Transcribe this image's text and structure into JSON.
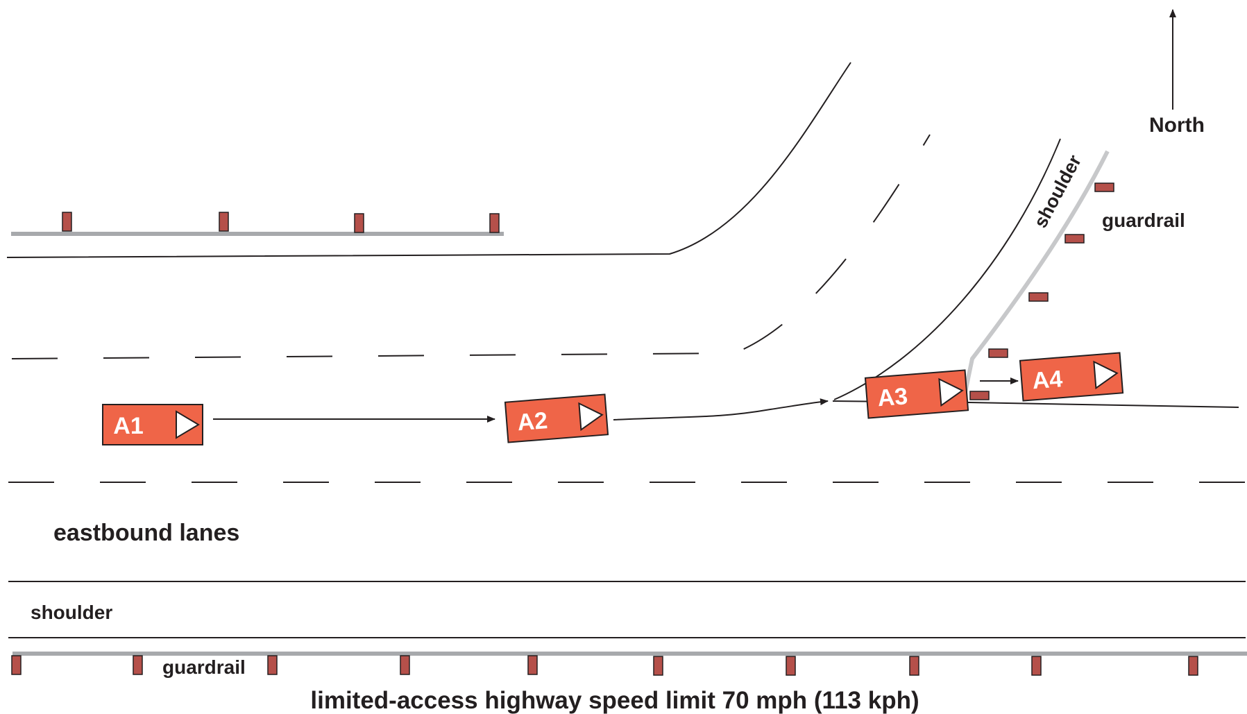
{
  "labels": {
    "north": "North",
    "shoulder_ramp": "shoulder",
    "guardrail_ramp": "guardrail",
    "eastbound_lanes": "eastbound lanes",
    "shoulder_main": "shoulder",
    "guardrail_main": "guardrail",
    "caption": "limited-access highway speed limit 70 mph (113 kph)"
  },
  "vehicles": [
    {
      "label": "A1"
    },
    {
      "label": "A2"
    },
    {
      "label": "A3"
    },
    {
      "label": "A4"
    }
  ],
  "colors": {
    "vehicle_fill": "#ef6548",
    "guardrail_rail": "#a7a9ac",
    "guardrail_post": "#b5504a",
    "line": "#231f20"
  }
}
